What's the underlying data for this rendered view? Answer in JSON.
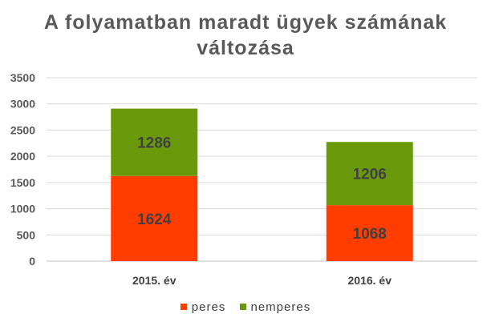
{
  "chart_data": {
    "type": "bar",
    "stacked": true,
    "title_lines": [
      "A folyamatban maradt ügyek számának",
      "változása"
    ],
    "categories": [
      "2015. év",
      "2016. év"
    ],
    "series": [
      {
        "name": "peres",
        "values": [
          1624,
          1068
        ],
        "color": "#ff3d00"
      },
      {
        "name": "nemperes",
        "values": [
          1286,
          1206
        ],
        "color": "#6a9a0c"
      }
    ],
    "ylim": [
      0,
      3500
    ],
    "yticks": [
      "0",
      "500",
      "1000",
      "1500",
      "2000",
      "2500",
      "3000",
      "3500"
    ],
    "grid": true,
    "legend_position": "bottom"
  }
}
